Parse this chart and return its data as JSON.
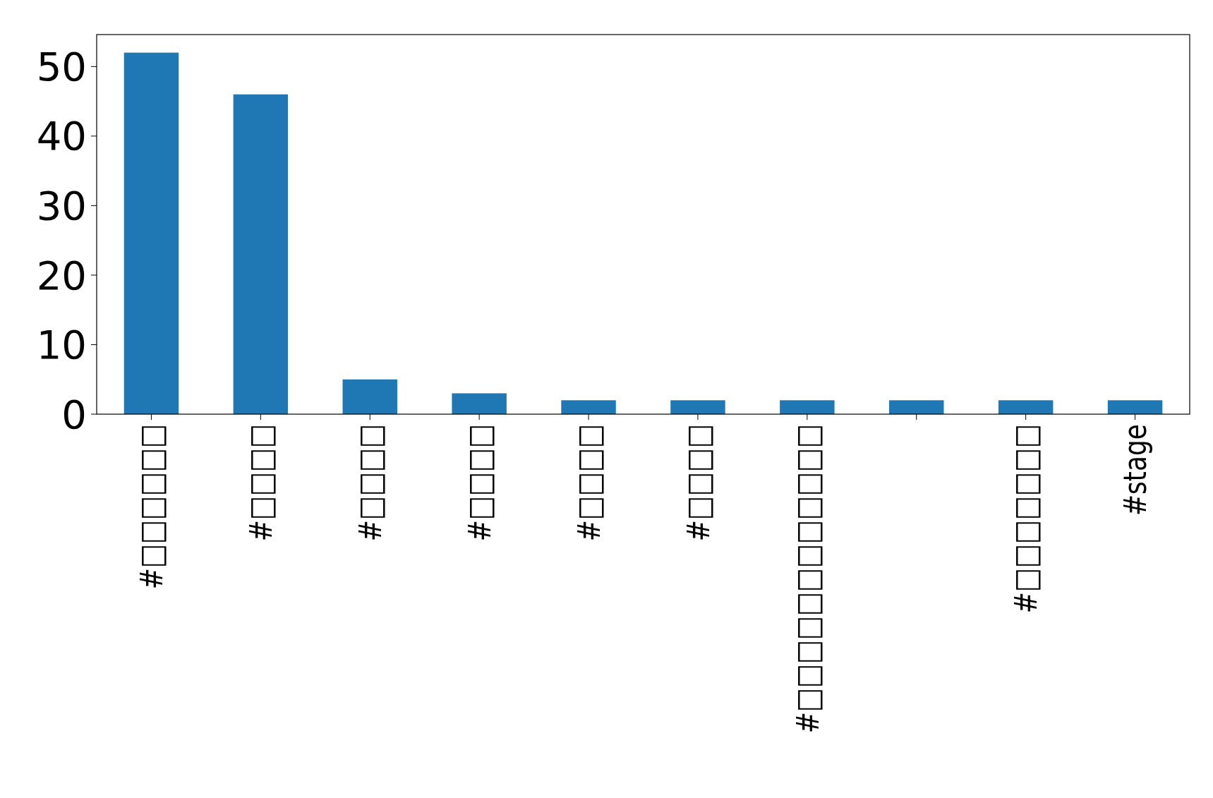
{
  "chart_data": {
    "type": "bar",
    "categories": [
      "#□□□□□□",
      "#□□□□",
      "#□□□□",
      "#□□□□",
      "#□□□□",
      "#□□□□",
      "#□□□□□□□□□□□□",
      null,
      "#□□□□□□□",
      "#stage"
    ],
    "values": [
      52,
      46,
      5,
      3,
      2,
      2,
      2,
      2,
      2,
      2
    ],
    "color": "#1f77b4",
    "ylim": [
      0,
      54.6
    ],
    "yticks": [
      0,
      10,
      20,
      30,
      40,
      50
    ],
    "grid": false
  }
}
